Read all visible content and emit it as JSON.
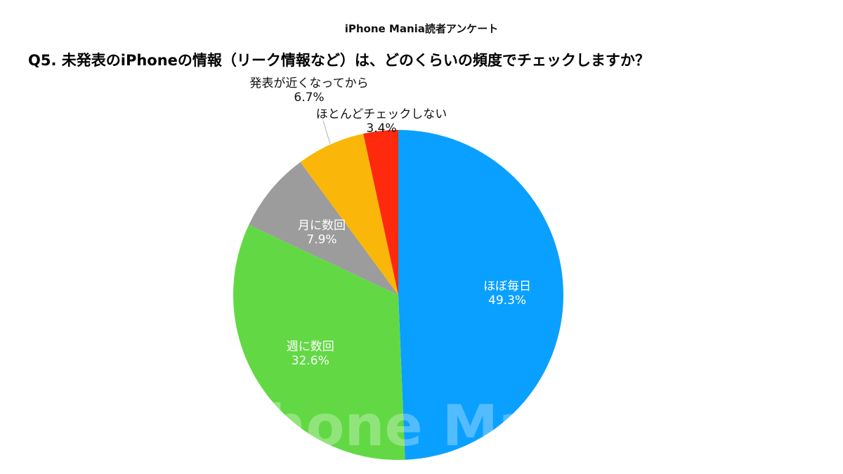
{
  "header": {
    "subtitle": "iPhone Mania読者アンケート",
    "title": "Q5. 未発表のiPhoneの情報（リーク情報など）は、どのくらいの頻度でチェックしますか？"
  },
  "watermark": "iPhone Mania",
  "chart_data": {
    "type": "pie",
    "title": "Q5. 未発表のiPhoneの情報（リーク情報など）は、どのくらいの頻度でチェックしますか？",
    "subtitle": "iPhone Mania読者アンケート",
    "start_angle": "12 o'clock",
    "direction": "clockwise",
    "slices": [
      {
        "label": "ほぼ毎日",
        "value": 49.3,
        "value_label": "49.3%",
        "color": "#0aa0ff"
      },
      {
        "label": "週に数回",
        "value": 32.6,
        "value_label": "32.6%",
        "color": "#62d944"
      },
      {
        "label": "月に数回",
        "value": 7.9,
        "value_label": "7.9%",
        "color": "#9c9c9c"
      },
      {
        "label": "発表が近くなってから",
        "value": 6.7,
        "value_label": "6.7%",
        "color": "#fab709"
      },
      {
        "label": "ほとんどチェックしない",
        "value": 3.4,
        "value_label": "3.4%",
        "color": "#ff2a0e"
      }
    ]
  }
}
